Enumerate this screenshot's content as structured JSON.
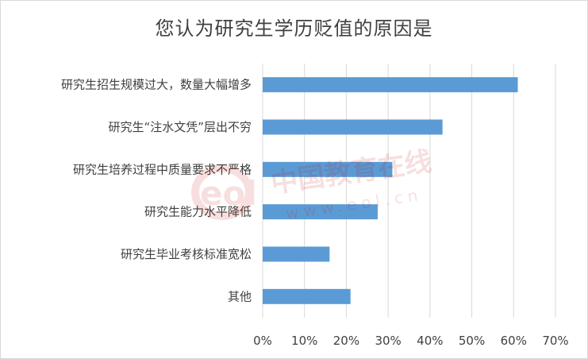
{
  "chart_data": {
    "type": "bar",
    "orientation": "horizontal",
    "title": "您认为研究生学历贬值的原因是",
    "categories": [
      "研究生招生规模过大，数量大幅增多",
      "研究生“注水文凭”层出不穷",
      "研究生培养过程中质量要求不严格",
      "研究生能力水平降低",
      "研究生毕业考核标准宽松",
      "其他"
    ],
    "values": [
      61,
      43,
      31,
      27.5,
      16,
      21
    ],
    "xlim": [
      0,
      70
    ],
    "xticks": [
      "0%",
      "10%",
      "20%",
      "30%",
      "40%",
      "50%",
      "60%",
      "70%"
    ],
    "grid": true,
    "bar_color": "#5b9bd5",
    "grid_color": "#d9d9d9"
  },
  "watermark": {
    "brand_text": "中国教育在线",
    "url_text": "www.eol.cn",
    "logo_text": "eol",
    "color": "#c00000"
  }
}
